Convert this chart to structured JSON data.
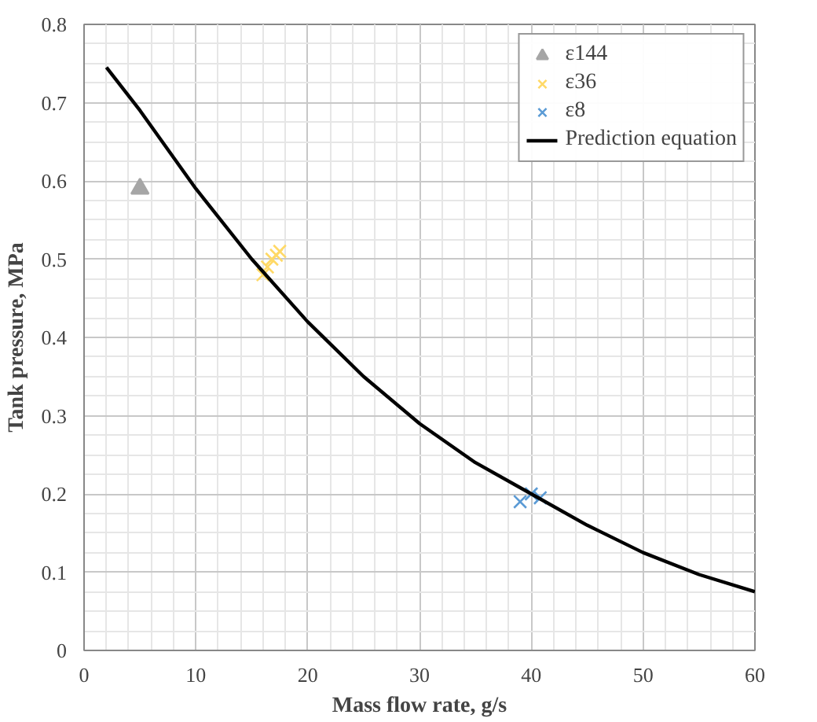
{
  "chart_data": {
    "type": "scatter",
    "xlabel": "Mass flow rate, g/s",
    "ylabel": "Tank pressure, MPa",
    "xlim": [
      0,
      60
    ],
    "xticks": [
      0,
      10,
      20,
      30,
      40,
      50,
      60
    ],
    "ylim": [
      0,
      0.8
    ],
    "yticks": [
      0,
      0.1,
      0.2,
      0.3,
      0.4,
      0.5,
      0.6,
      0.7,
      0.8
    ],
    "grid": true,
    "legend": "top right",
    "series": [
      {
        "name": "ε144",
        "marker": "triangle",
        "color": "#a6a6a6",
        "x": [
          5.0
        ],
        "values": [
          0.59
        ]
      },
      {
        "name": "ε36",
        "marker": "cross",
        "color": "#ffd966",
        "x": [
          16.0,
          16.4,
          16.8,
          17.2,
          17.5
        ],
        "values": [
          0.48,
          0.49,
          0.5,
          0.505,
          0.51
        ]
      },
      {
        "name": "ε8",
        "marker": "cross",
        "color": "#5b9bd5",
        "x": [
          39.0,
          40.0,
          40.8
        ],
        "values": [
          0.19,
          0.2,
          0.195
        ]
      },
      {
        "name": "Prediction equation",
        "type": "line",
        "marker": "none",
        "color": "#000000",
        "x": [
          2,
          5,
          10,
          15,
          20,
          25,
          30,
          35,
          40,
          45,
          50,
          55,
          60
        ],
        "values": [
          0.745,
          0.69,
          0.59,
          0.5,
          0.42,
          0.35,
          0.29,
          0.24,
          0.2,
          0.16,
          0.125,
          0.097,
          0.075
        ]
      }
    ]
  }
}
